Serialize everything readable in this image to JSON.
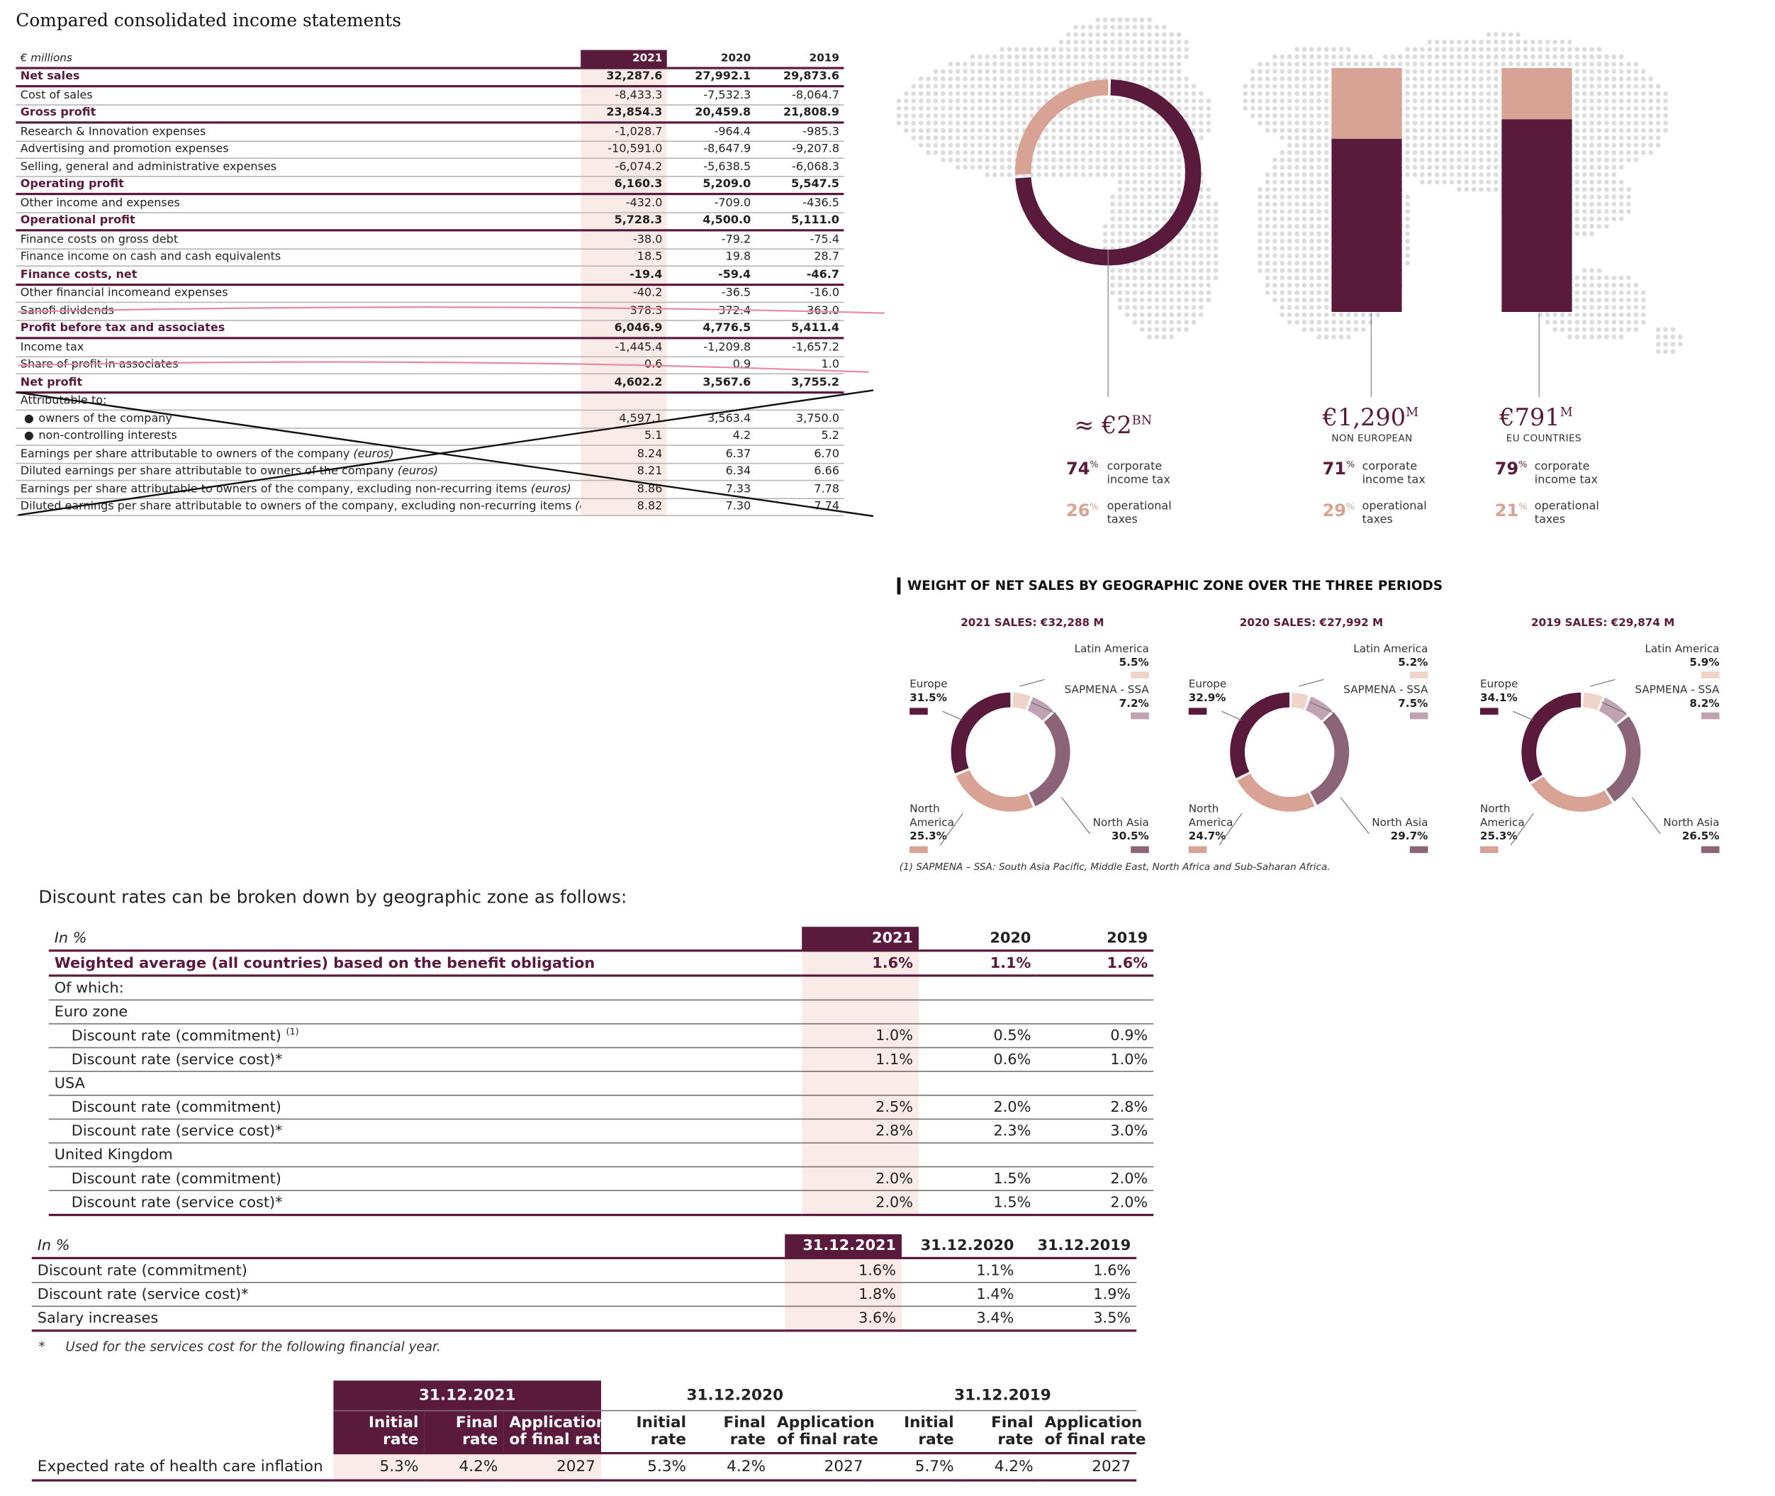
{
  "income_statement": {
    "title": "Compared consolidated income statements",
    "unit": "€ millions",
    "years": [
      "2021",
      "2020",
      "2019"
    ],
    "rows": [
      {
        "label": "Net sales",
        "v": [
          "32,287.6",
          "27,992.1",
          "29,873.6"
        ],
        "bold": true
      },
      {
        "label": "Cost of sales",
        "v": [
          "-8,433.3",
          "-7,532.3",
          "-8,064.7"
        ]
      },
      {
        "label": "Gross profit",
        "v": [
          "23,854.3",
          "20,459.8",
          "21,808.9"
        ],
        "bold": true
      },
      {
        "label": "Research & Innovation expenses",
        "v": [
          "-1,028.7",
          "-964.4",
          "-985.3"
        ]
      },
      {
        "label": "Advertising and promotion expenses",
        "v": [
          "-10,591.0",
          "-8,647.9",
          "-9,207.8"
        ]
      },
      {
        "label": "Selling, general and administrative expenses",
        "v": [
          "-6,074.2",
          "-5,638.5",
          "-6,068.3"
        ]
      },
      {
        "label": "Operating profit",
        "v": [
          "6,160.3",
          "5,209.0",
          "5,547.5"
        ],
        "bold": true
      },
      {
        "label": "Other income and expenses",
        "v": [
          "-432.0",
          "-709.0",
          "-436.5"
        ]
      },
      {
        "label": "Operational profit",
        "v": [
          "5,728.3",
          "4,500.0",
          "5,111.0"
        ],
        "bold": true
      },
      {
        "label": "Finance costs on gross debt",
        "v": [
          "-38.0",
          "-79.2",
          "-75.4"
        ]
      },
      {
        "label": "Finance income on cash and cash equivalents",
        "v": [
          "18.5",
          "19.8",
          "28.7"
        ]
      },
      {
        "label": "Finance costs, net",
        "v": [
          "-19.4",
          "-59.4",
          "-46.7"
        ],
        "bold": true
      },
      {
        "label": "Other financial incomeand expenses",
        "v": [
          "-40.2",
          "-36.5",
          "-16.0"
        ]
      },
      {
        "label": "Sanofi dividends",
        "v": [
          "378.3",
          "372.4",
          "363.0"
        ]
      },
      {
        "label": "Profit before tax and associates",
        "v": [
          "6,046.9",
          "4,776.5",
          "5,411.4"
        ],
        "bold": true
      },
      {
        "label": "Income tax",
        "v": [
          "-1,445.4",
          "-1,209.8",
          "-1,657.2"
        ]
      },
      {
        "label": "Share of profit in associates",
        "v": [
          "0.6",
          "0.9",
          "1.0"
        ]
      },
      {
        "label": "Net profit",
        "v": [
          "4,602.2",
          "3,567.6",
          "3,755.2"
        ],
        "bold": true
      },
      {
        "label": "Attributable to:",
        "v": [
          "",
          "",
          ""
        ]
      },
      {
        "label": "owners of the company",
        "v": [
          "4,597.1",
          "3,563.4",
          "3,750.0"
        ],
        "bullet": true
      },
      {
        "label": "non-controlling interests",
        "v": [
          "5.1",
          "4.2",
          "5.2"
        ],
        "bullet": true
      },
      {
        "label": "Earnings per share attributable to owners of the company",
        "suffix": "(euros)",
        "v": [
          "8.24",
          "6.37",
          "6.70"
        ]
      },
      {
        "label": "Diluted earnings per share attributable to owners of the company",
        "suffix": "(euros)",
        "v": [
          "8.21",
          "6.34",
          "6.66"
        ]
      },
      {
        "label": "Earnings per share attributable to owners of the company, excluding non-recurring items",
        "suffix": "(euros)",
        "v": [
          "8.86",
          "7.33",
          "7.78"
        ]
      },
      {
        "label": "Diluted earnings per share attributable to owners of the company, excluding non-recurring items",
        "suffix": "(euros)",
        "v": [
          "8.82",
          "7.30",
          "7.74"
        ]
      }
    ]
  },
  "tax": {
    "total": {
      "value": "≈ €2",
      "unit": "BN",
      "share": 0.74,
      "corp_pct": "74",
      "op_pct": "26"
    },
    "non_european": {
      "value": "€1,290",
      "unit": "M",
      "sub": "NON EUROPEAN",
      "share": 0.71,
      "corp_pct": "71",
      "op_pct": "29"
    },
    "eu": {
      "value": "€791",
      "unit": "M",
      "sub": "EU COUNTRIES",
      "share": 0.79,
      "corp_pct": "79",
      "op_pct": "21"
    },
    "pct_symbol": "%",
    "corp_label_1": "corporate",
    "corp_label_2": "income tax",
    "op_label_1": "operational",
    "op_label_2": "taxes",
    "colors": {
      "dark": "#5a1a3b",
      "light": "#d8a294"
    }
  },
  "net_sales": {
    "title": "WEIGHT OF NET SALES BY GEOGRAPHIC ZONE OVER THE THREE PERIODS",
    "footnote": "(1)  SAPMENA – SSA: South Asia Pacific, Middle East, North Africa and Sub-Saharan Africa.",
    "periods": [
      {
        "heading": "2021 SALES: €32,288 M",
        "europe": "31.5%",
        "north_america": "25.3%",
        "north_asia": "30.5%",
        "sapmena": "7.2%",
        "latin_america": "5.5%"
      },
      {
        "heading": "2020 SALES: €27,992 M",
        "europe": "32.9%",
        "north_america": "24.7%",
        "north_asia": "29.7%",
        "sapmena": "7.5%",
        "latin_america": "5.2%"
      },
      {
        "heading": "2019 SALES: €29,874 M",
        "europe": "34.1%",
        "north_america": "25.3%",
        "north_asia": "26.5%",
        "sapmena": "8.2%",
        "latin_america": "5.9%"
      }
    ],
    "labels": {
      "europe": "Europe",
      "north_america_1": "North",
      "north_america_2": "America",
      "north_asia": "North Asia",
      "sapmena": "SAPMENA - SSA",
      "latin_america": "Latin America"
    },
    "colors": {
      "europe": "#5a1a3b",
      "north_america": "#d8a294",
      "north_asia": "#8c6478",
      "sapmena": "#c0a3b2",
      "latin_america": "#f0d3c9"
    }
  },
  "chart_data": [
    {
      "type": "pie",
      "title": "2021 SALES: €32,288 M",
      "categories": [
        "Europe",
        "North America",
        "North Asia",
        "SAPMENA - SSA",
        "Latin America"
      ],
      "values": [
        31.5,
        25.3,
        30.5,
        7.2,
        5.5
      ]
    },
    {
      "type": "pie",
      "title": "2020 SALES: €27,992 M",
      "categories": [
        "Europe",
        "North America",
        "North Asia",
        "SAPMENA - SSA",
        "Latin America"
      ],
      "values": [
        32.9,
        24.7,
        29.7,
        7.5,
        5.2
      ]
    },
    {
      "type": "pie",
      "title": "2019 SALES: €29,874 M",
      "categories": [
        "Europe",
        "North America",
        "North Asia",
        "SAPMENA - SSA",
        "Latin America"
      ],
      "values": [
        34.1,
        25.3,
        26.5,
        8.2,
        5.9
      ]
    }
  ],
  "discount_rates": {
    "intro": "Discount rates can be broken down by geographic zone as follows:",
    "unit": "In %",
    "years": [
      "2021",
      "2020",
      "2019"
    ],
    "rows": [
      {
        "label": "Weighted average (all countries) based on the benefit obligation",
        "v": [
          "1.6%",
          "1.1%",
          "1.6%"
        ],
        "kind": "wavg"
      },
      {
        "label": "Of which:",
        "v": [
          "",
          "",
          ""
        ],
        "kind": "group"
      },
      {
        "label": "Euro zone",
        "v": [
          "",
          "",
          ""
        ],
        "kind": "group"
      },
      {
        "label": "Discount rate (commitment)",
        "sup": "(1)",
        "v": [
          "1.0%",
          "0.5%",
          "0.9%"
        ],
        "kind": "ind"
      },
      {
        "label": "Discount rate (service cost)*",
        "v": [
          "1.1%",
          "0.6%",
          "1.0%"
        ],
        "kind": "ind"
      },
      {
        "label": "USA",
        "v": [
          "",
          "",
          ""
        ],
        "kind": "group"
      },
      {
        "label": "Discount rate (commitment)",
        "v": [
          "2.5%",
          "2.0%",
          "2.8%"
        ],
        "kind": "ind"
      },
      {
        "label": "Discount rate (service cost)*",
        "v": [
          "2.8%",
          "2.3%",
          "3.0%"
        ],
        "kind": "ind"
      },
      {
        "label": "United Kingdom",
        "v": [
          "",
          "",
          ""
        ],
        "kind": "group"
      },
      {
        "label": "Discount rate (commitment)",
        "v": [
          "2.0%",
          "1.5%",
          "2.0%"
        ],
        "kind": "ind"
      },
      {
        "label": "Discount rate (service cost)*",
        "v": [
          "2.0%",
          "1.5%",
          "2.0%"
        ],
        "kind": "ind"
      }
    ]
  },
  "assumptions": {
    "unit": "In %",
    "dates": [
      "31.12.2021",
      "31.12.2020",
      "31.12.2019"
    ],
    "rows": [
      {
        "label": "Discount rate (commitment)",
        "v": [
          "1.6%",
          "1.1%",
          "1.6%"
        ]
      },
      {
        "label": "Discount rate (service cost)*",
        "v": [
          "1.8%",
          "1.4%",
          "1.9%"
        ]
      },
      {
        "label": "Salary increases",
        "v": [
          "3.6%",
          "3.4%",
          "3.5%"
        ]
      }
    ],
    "note_star": "*",
    "note": "Used for the services cost for the following financial year."
  },
  "health_care": {
    "dates": [
      "31.12.2021",
      "31.12.2020",
      "31.12.2019"
    ],
    "col1a": "Initial",
    "col1b": "rate",
    "col2a": "Final",
    "col2b": "rate",
    "col3a": "Application",
    "col3b": "of final rate",
    "row_label": "Expected rate of health care inflation",
    "values": [
      "5.3%",
      "4.2%",
      "2027",
      "5.3%",
      "4.2%",
      "2027",
      "5.7%",
      "4.2%",
      "2027"
    ]
  }
}
